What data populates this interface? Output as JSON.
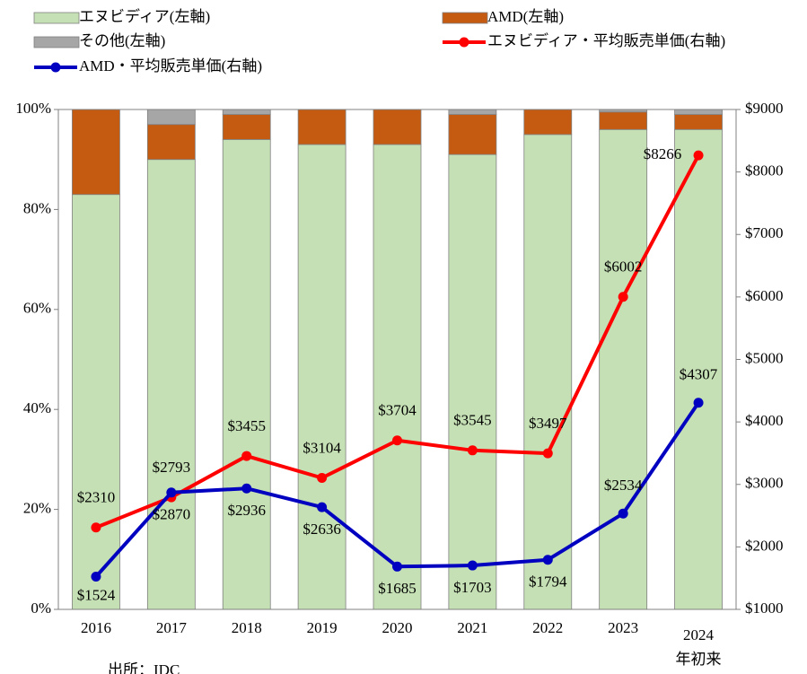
{
  "chart_data": {
    "type": "stacked-bar-line",
    "categories": [
      "2016",
      "2017",
      "2018",
      "2019",
      "2020",
      "2021",
      "2022",
      "2023",
      "2024\n年初来"
    ],
    "series": [
      {
        "name": "エヌビディア(左軸)",
        "type": "bar",
        "color": "#c5e0b4",
        "values": [
          83,
          90,
          94,
          93,
          93,
          91,
          95,
          96,
          96
        ]
      },
      {
        "name": "AMD(左軸)",
        "type": "bar",
        "color": "#c55a11",
        "values": [
          17,
          7,
          5,
          7,
          7,
          8,
          5,
          3.5,
          3
        ]
      },
      {
        "name": "その他(左軸)",
        "type": "bar",
        "color": "#a6a6a6",
        "values": [
          0,
          3,
          1,
          0,
          0,
          1,
          0,
          0.5,
          1
        ]
      },
      {
        "name": "エヌビディア・平均販売単価(右軸)",
        "type": "line",
        "axis": "y2",
        "color": "#ff0000",
        "values": [
          2310,
          2793,
          3455,
          3104,
          3704,
          3545,
          3497,
          6002,
          8266
        ],
        "value_labels": [
          "$2310",
          "$2793",
          "$3455",
          "$3104",
          "$3704",
          "$3545",
          "$3497",
          "$6002",
          "$8266"
        ]
      },
      {
        "name": "AMD・平均販売単価(右軸)",
        "type": "line",
        "axis": "y2",
        "color": "#0000c0",
        "values": [
          1524,
          2870,
          2936,
          2636,
          1685,
          1703,
          1794,
          2534,
          4307
        ],
        "value_labels": [
          "$1524",
          "$2870",
          "$2936",
          "$2636",
          "$1685",
          "$1703",
          "$1794",
          "$2534",
          "$4307"
        ]
      }
    ],
    "ylim": [
      0,
      100
    ],
    "yticks": [
      {
        "value": 0,
        "label": "0%"
      },
      {
        "value": 20,
        "label": "20%"
      },
      {
        "value": 40,
        "label": "40%"
      },
      {
        "value": 60,
        "label": "60%"
      },
      {
        "value": 80,
        "label": "80%"
      },
      {
        "value": 100,
        "label": "100%"
      }
    ],
    "y2lim": [
      1000,
      9000
    ],
    "y2ticks": [
      {
        "value": 1000,
        "label": "$1000"
      },
      {
        "value": 2000,
        "label": "$2000"
      },
      {
        "value": 3000,
        "label": "$3000"
      },
      {
        "value": 4000,
        "label": "$4000"
      },
      {
        "value": 5000,
        "label": "$5000"
      },
      {
        "value": 6000,
        "label": "$6000"
      },
      {
        "value": 7000,
        "label": "$7000"
      },
      {
        "value": 8000,
        "label": "$8000"
      },
      {
        "value": 9000,
        "label": "$9000"
      }
    ],
    "legend": "top",
    "source": "出所：IDC"
  }
}
